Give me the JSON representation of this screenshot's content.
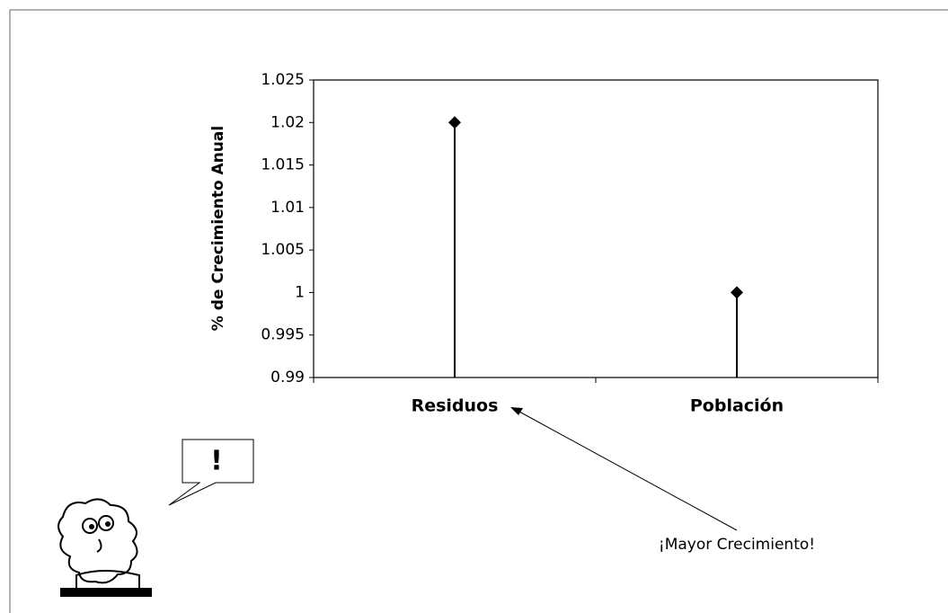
{
  "chart_data": {
    "type": "stem",
    "y_label": "% de Crecimiento Anual",
    "categories": [
      "Residuos",
      "Población"
    ],
    "values": [
      1.02,
      1
    ],
    "color": "#000000",
    "ylim": [
      0.99,
      1.025
    ],
    "yticks": [
      0.99,
      0.995,
      1,
      1.005,
      1.01,
      1.015,
      1.02,
      1.025
    ],
    "grid": false,
    "annotation": "¡Mayor Crecimiento!",
    "bubble_text": "!"
  }
}
